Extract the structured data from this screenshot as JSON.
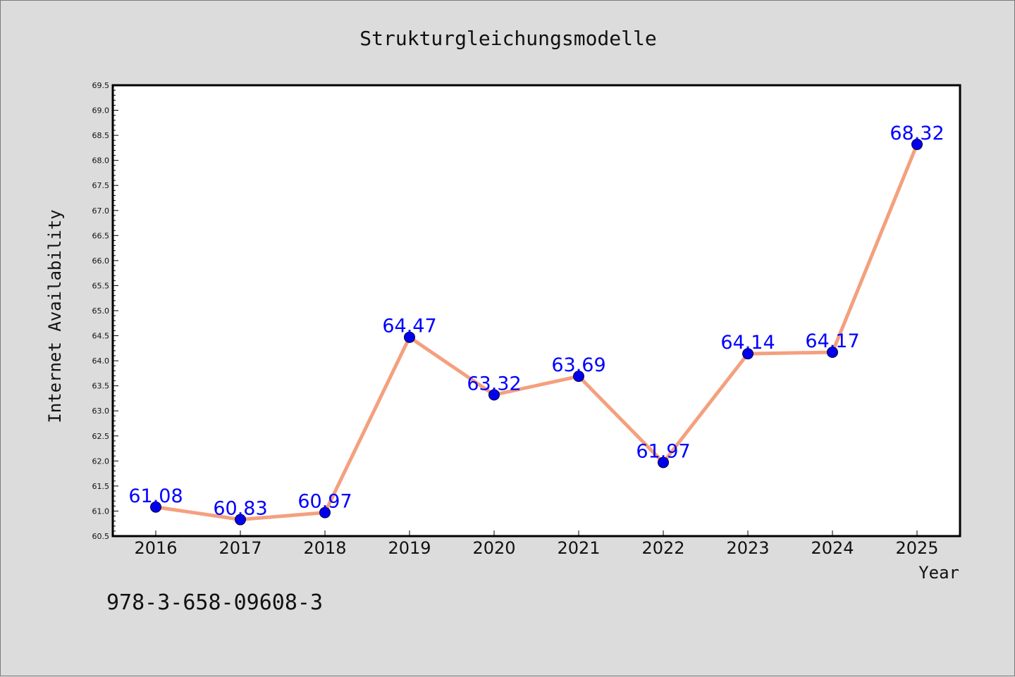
{
  "chart_data": {
    "type": "line",
    "title": "Strukturgleichungsmodelle",
    "xlabel": "Year",
    "ylabel": "Internet Availability",
    "categories": [
      "2016",
      "2017",
      "2018",
      "2019",
      "2020",
      "2021",
      "2022",
      "2023",
      "2024",
      "2025"
    ],
    "series": [
      {
        "values": [
          61.08,
          60.83,
          60.97,
          64.47,
          63.32,
          63.69,
          61.97,
          64.14,
          64.17,
          68.32
        ],
        "labels": [
          "61.08",
          "60.83",
          "60.97",
          "64.47",
          "63.32",
          "63.69",
          "61.97",
          "64.14",
          "64.17",
          "68.32"
        ],
        "line_color": "#f4a07e",
        "marker_color": "#0000ee"
      }
    ],
    "ylim": [
      60.5,
      69.5
    ],
    "yticks": [
      "60.5",
      "61.0",
      "61.5",
      "62.0",
      "62.5",
      "63.0",
      "63.5",
      "64.0",
      "64.5",
      "65.0",
      "65.5",
      "66.0",
      "66.5",
      "67.0",
      "67.5",
      "68.0",
      "68.5",
      "69.0",
      "69.5"
    ],
    "grid": false,
    "legend": "none"
  },
  "footer": {
    "isbn": "978-3-658-09608-3"
  }
}
